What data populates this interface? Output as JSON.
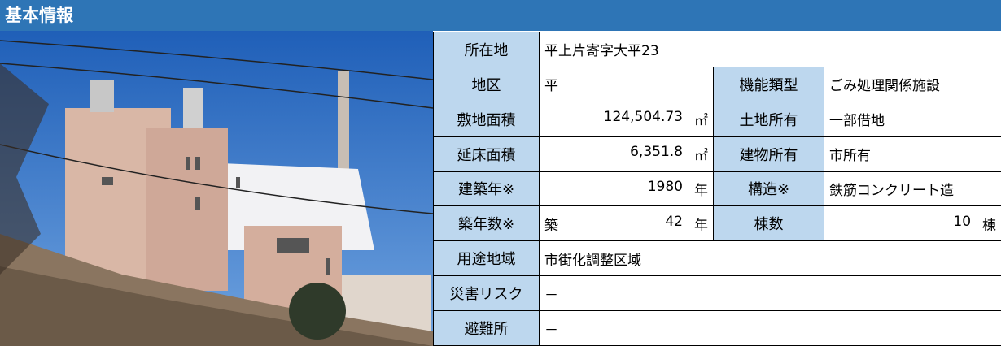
{
  "header": {
    "title": "基本情報"
  },
  "table": {
    "rows": [
      [
        "所在地",
        {
          "text": "平上片寄字大平23"
        }
      ],
      [
        "地区",
        {
          "text": "平"
        },
        "機能類型",
        {
          "text": "ごみ処理関係施設"
        }
      ],
      [
        "敷地面積",
        {
          "number": "124,504.73",
          "unit": "㎡"
        },
        "土地所有",
        {
          "text": "一部借地"
        }
      ],
      [
        "延床面積",
        {
          "number": "6,351.8",
          "unit": "㎡"
        },
        "建物所有",
        {
          "text": "市所有"
        }
      ],
      [
        "建築年※",
        {
          "number": "1980",
          "unit": "年"
        },
        "構造※",
        {
          "text": "鉄筋コンクリート造"
        }
      ],
      [
        "築年数※",
        {
          "prefix": "築",
          "number": "42",
          "unit": "年"
        },
        "棟数",
        {
          "number": "10",
          "unit": "棟"
        }
      ],
      [
        "用途地域",
        {
          "text": "市街化調整区域"
        }
      ],
      [
        "災害リスク",
        {
          "text": "－"
        }
      ],
      [
        "避難所",
        {
          "text": "－"
        }
      ]
    ]
  }
}
